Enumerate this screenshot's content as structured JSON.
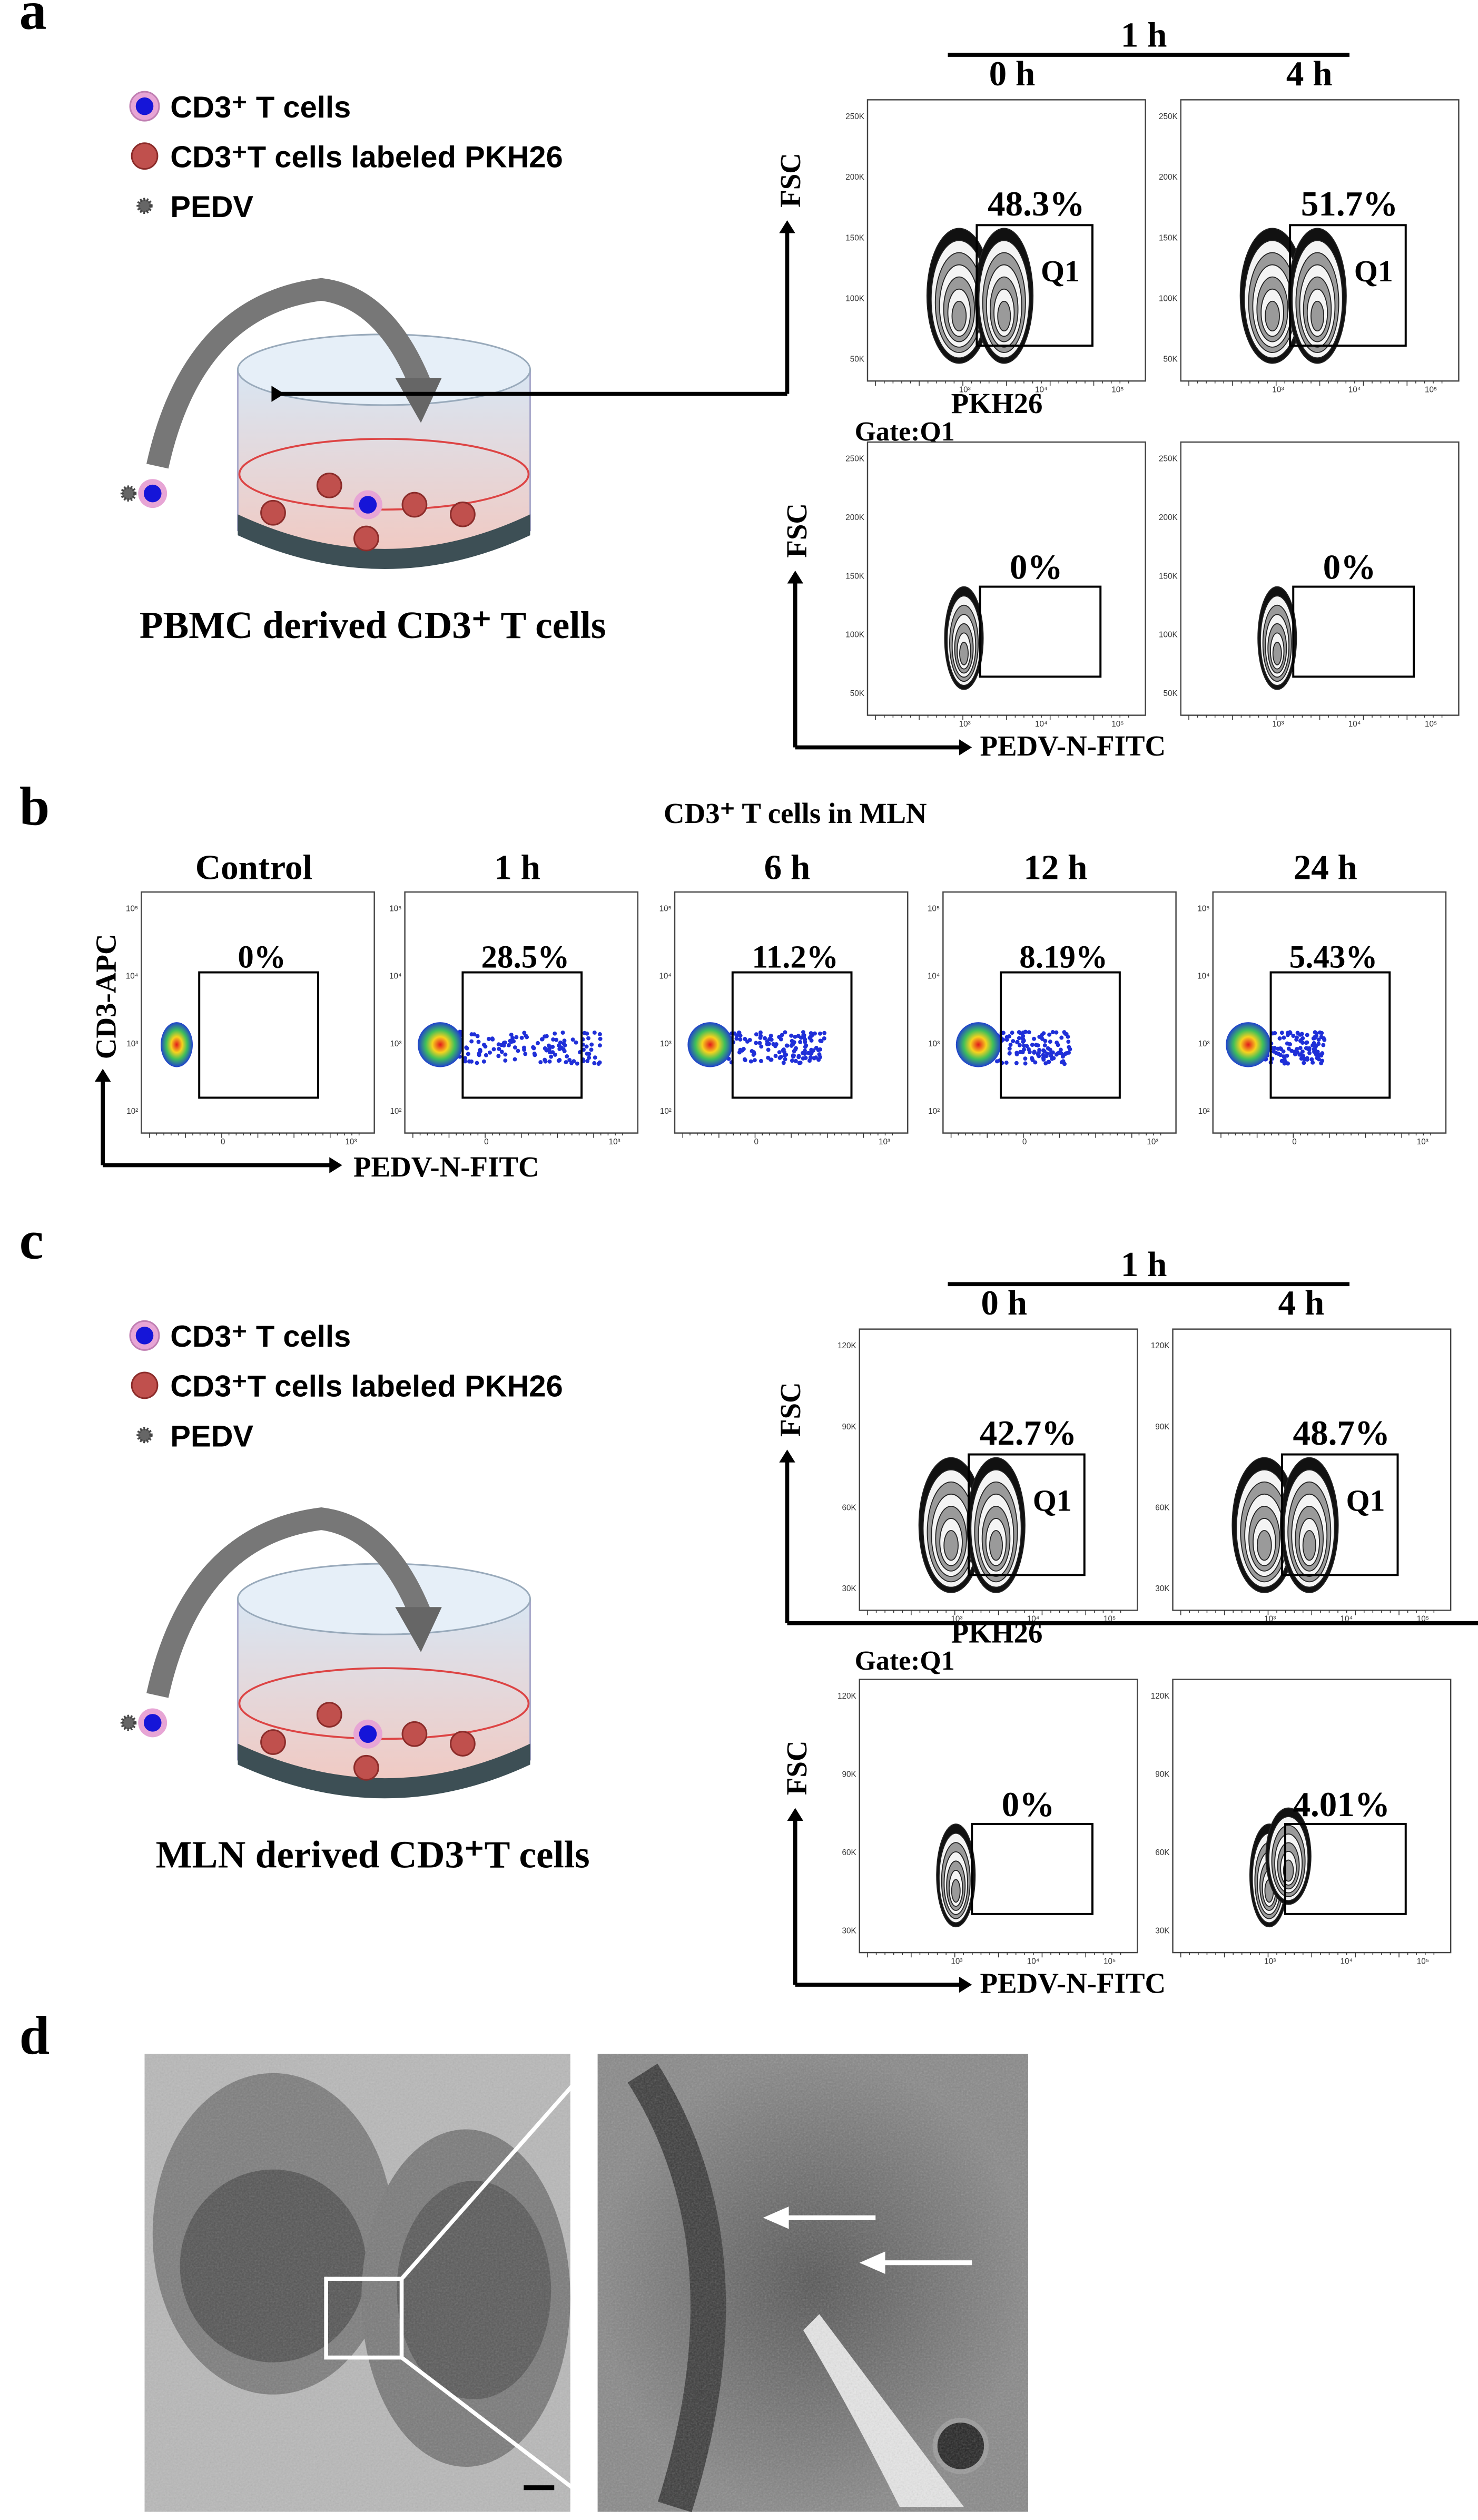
{
  "panels": [
    {
      "label": "a",
      "legend": [
        "CD3⁺ T cells",
        "CD3⁺T cells labeled PKH26",
        "PEDV"
      ],
      "caption": "PBMC derived CD3⁺ T cells",
      "time_header": "1 h",
      "columns": [
        "0 h",
        "4 h"
      ],
      "top": {
        "y_axis": "FSC",
        "x_axis": "PKH26",
        "values": [
          "48.3%",
          "51.7%"
        ],
        "gate_name": "Q1",
        "yticks": [
          "250K",
          "200K",
          "150K",
          "100K",
          "50K"
        ],
        "xticks": [
          "10³",
          "10⁴",
          "10⁵"
        ]
      },
      "gate": "Gate:Q1",
      "bottom": {
        "y_axis": "FSC",
        "x_axis": "PEDV-N-FITC",
        "values": [
          "0%",
          "0%"
        ],
        "yticks": [
          "250K",
          "200K",
          "150K",
          "100K",
          "50K"
        ],
        "xticks": [
          "10³",
          "10⁴",
          "10⁵"
        ]
      }
    },
    {
      "label": "b",
      "title": "CD3⁺ T cells in MLN",
      "columns": [
        "Control",
        "1 h",
        "6 h",
        "12 h",
        "24 h"
      ],
      "values": [
        "0%",
        "28.5%",
        "11.2%",
        "8.19%",
        "5.43%"
      ],
      "y_axis": "CD3-APC",
      "x_axis": "PEDV-N-FITC",
      "yticks": [
        "10⁵",
        "10⁴",
        "10³",
        "10²"
      ],
      "xticks": [
        "0",
        "10³"
      ]
    },
    {
      "label": "c",
      "legend": [
        "CD3⁺ T cells",
        "CD3⁺T cells labeled PKH26",
        "PEDV"
      ],
      "caption": "MLN derived CD3⁺T cells",
      "time_header": "1 h",
      "columns": [
        "0 h",
        "4 h"
      ],
      "top": {
        "y_axis": "FSC",
        "x_axis": "PKH26",
        "values": [
          "42.7%",
          "48.7%"
        ],
        "gate_name": "Q1",
        "yticks": [
          "120K",
          "90K",
          "60K",
          "30K"
        ],
        "xticks": [
          "10³",
          "10⁴",
          "10⁵"
        ]
      },
      "gate": "Gate:Q1",
      "bottom": {
        "y_axis": "FSC",
        "x_axis": "PEDV-N-FITC",
        "values": [
          "0%",
          "4.01%"
        ],
        "yticks": [
          "120K",
          "90K",
          "60K",
          "30K"
        ],
        "xticks": [
          "10³",
          "10⁴",
          "10⁵"
        ]
      }
    },
    {
      "label": "d"
    }
  ]
}
